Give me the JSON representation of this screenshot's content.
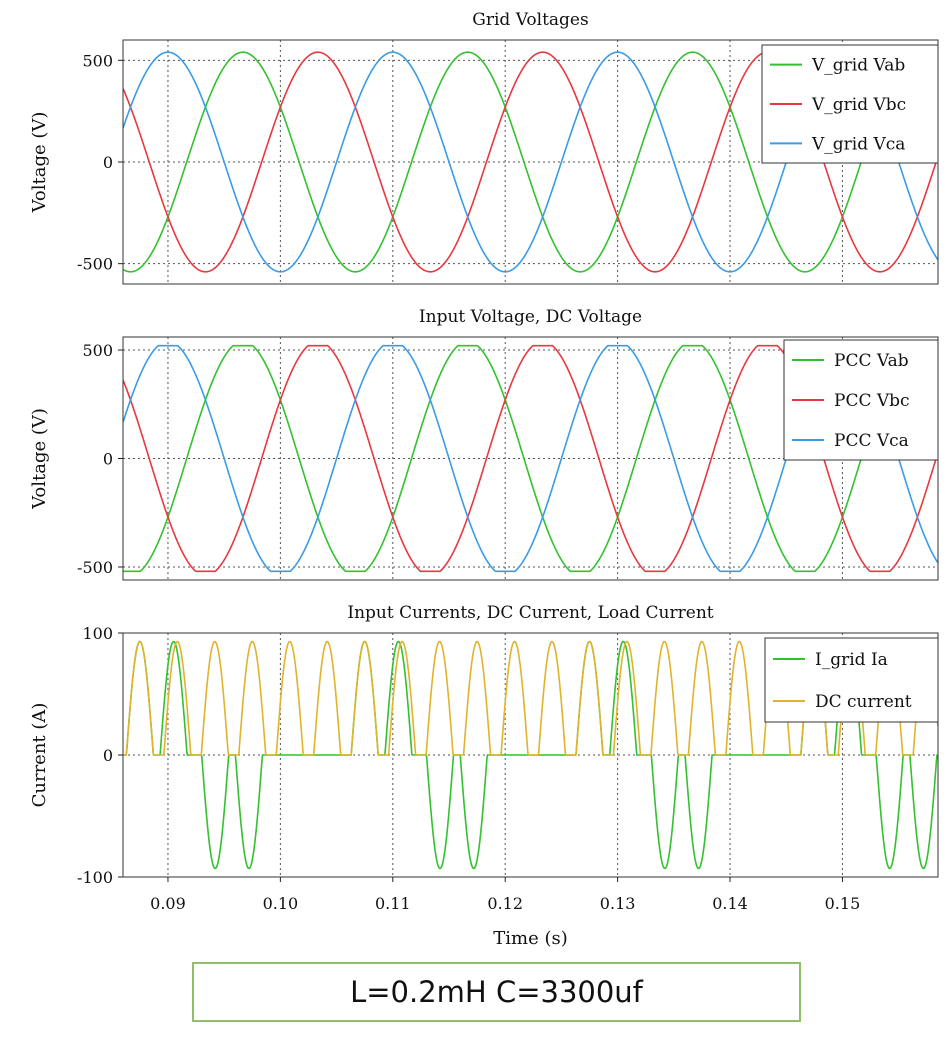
{
  "caption": "L=0.2mH C=3300uf",
  "colors": {
    "green": "#33c12f",
    "red": "#e8383f",
    "blue": "#3a9be6",
    "orange": "#e0b32a"
  },
  "chart_data": [
    {
      "type": "line",
      "title": "Grid Voltages",
      "ylabel": "Voltage (V)",
      "xlabel": "",
      "xlim": [
        0.086,
        0.1585
      ],
      "ylim": [
        -600,
        600
      ],
      "yticks": [
        "500",
        "0",
        "-500"
      ],
      "ytick_values": [
        500,
        0,
        -500
      ],
      "grid": true,
      "legend_position": "top-right",
      "series": [
        {
          "name": "V_grid Vab",
          "color": "#33c12f",
          "waveform": "sine",
          "amplitude_V": 540,
          "frequency_Hz": 50,
          "phase_deg": 150
        },
        {
          "name": "V_grid Vbc",
          "color": "#e8383f",
          "waveform": "sine",
          "amplitude_V": 540,
          "frequency_Hz": 50,
          "phase_deg": 30
        },
        {
          "name": "V_grid Vca",
          "color": "#3a9be6",
          "waveform": "sine",
          "amplitude_V": 540,
          "frequency_Hz": 50,
          "phase_deg": -90
        }
      ]
    },
    {
      "type": "line",
      "title": "Input Voltage, DC Voltage",
      "ylabel": "Voltage (V)",
      "xlabel": "",
      "xlim": [
        0.086,
        0.1585
      ],
      "ylim": [
        -560,
        560
      ],
      "yticks": [
        "500",
        "0",
        "-500"
      ],
      "ytick_values": [
        500,
        0,
        -500
      ],
      "grid": true,
      "legend_position": "top-right",
      "series": [
        {
          "name": "PCC Vab",
          "color": "#33c12f",
          "waveform": "flat-topped sine",
          "amplitude_V": 540,
          "clip_V": 520,
          "frequency_Hz": 50,
          "phase_deg": 150
        },
        {
          "name": "PCC Vbc",
          "color": "#e8383f",
          "waveform": "flat-topped sine",
          "amplitude_V": 540,
          "clip_V": 520,
          "frequency_Hz": 50,
          "phase_deg": 30
        },
        {
          "name": "PCC Vca",
          "color": "#3a9be6",
          "waveform": "flat-topped sine",
          "amplitude_V": 540,
          "clip_V": 520,
          "frequency_Hz": 50,
          "phase_deg": -90
        }
      ]
    },
    {
      "type": "line",
      "title": "Input Currents, DC Current, Load Current",
      "ylabel": "Current (A)",
      "xlabel": "Time (s)",
      "xlim": [
        0.086,
        0.1585
      ],
      "ylim": [
        -100,
        100
      ],
      "yticks": [
        "100",
        "0",
        "-100"
      ],
      "ytick_values": [
        100,
        0,
        -100
      ],
      "xticks": [
        "0.09",
        "0.10",
        "0.11",
        "0.12",
        "0.13",
        "0.14",
        "0.15"
      ],
      "xtick_values": [
        0.09,
        0.1,
        0.11,
        0.12,
        0.13,
        0.14,
        0.15
      ],
      "grid": true,
      "legend_position": "top-right",
      "series": [
        {
          "name": "I_grid Ia",
          "color": "#33c12f",
          "waveform": "double-hump pulses",
          "peak_A": 93,
          "positive_peaks_s": [
            0.0875,
            0.0905,
            0.1075,
            0.1105,
            0.1275,
            0.1305,
            0.1475,
            0.1505
          ],
          "negative_peaks_s": [
            0.0942,
            0.0972,
            0.1142,
            0.1172,
            0.1342,
            0.1372,
            0.1542,
            0.1572
          ],
          "pulse_width_s": 0.0024
        },
        {
          "name": "DC current",
          "color": "#e0b32a",
          "waveform": "rectified pulses",
          "peak_A": 93,
          "pulse_period_s": 0.003333,
          "first_peak_s": 0.0875,
          "pulse_width_s": 0.0024
        }
      ]
    }
  ]
}
